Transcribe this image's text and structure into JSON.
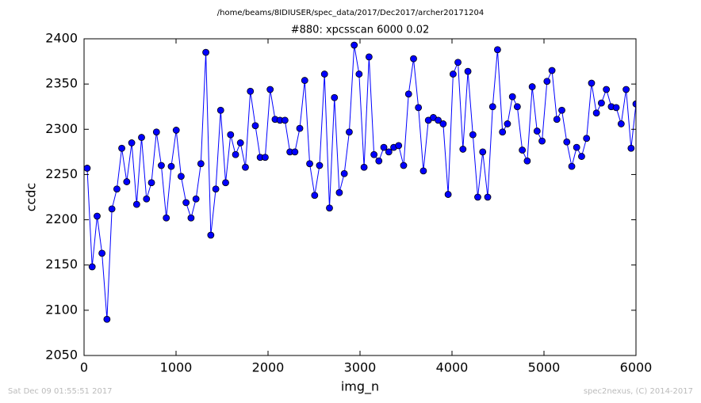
{
  "chart_data": {
    "type": "line",
    "suptitle": "/home/beams/8IDIUSER/spec_data/2017/Dec2017/archer20171204",
    "title": "#880: xpcsscan 6000 0.02",
    "xlabel": "img_n",
    "ylabel": "ccdc",
    "x": [
      34,
      88,
      142,
      195,
      249,
      303,
      357,
      410,
      464,
      518,
      572,
      625,
      679,
      733,
      787,
      840,
      894,
      948,
      1002,
      1055,
      1109,
      1163,
      1217,
      1270,
      1324,
      1378,
      1432,
      1485,
      1539,
      1593,
      1647,
      1700,
      1754,
      1808,
      1862,
      1915,
      1969,
      2023,
      2077,
      2130,
      2184,
      2238,
      2292,
      2345,
      2399,
      2453,
      2507,
      2560,
      2614,
      2668,
      2722,
      2775,
      2829,
      2883,
      2937,
      2990,
      3044,
      3098,
      3152,
      3205,
      3259,
      3313,
      3367,
      3420,
      3474,
      3528,
      3582,
      3635,
      3689,
      3743,
      3797,
      3850,
      3904,
      3958,
      4012,
      4065,
      4119,
      4173,
      4227,
      4280,
      4334,
      4388,
      4442,
      4495,
      4549,
      4603,
      4657,
      4710,
      4764,
      4818,
      4872,
      4925,
      4979,
      5033,
      5087,
      5140,
      5194,
      5248,
      5302,
      5355,
      5409,
      5463,
      5517,
      5570,
      5624,
      5678,
      5732,
      5785,
      5839,
      5893,
      5947,
      6000
    ],
    "series": [
      {
        "color": "#0000ff",
        "values": [
          2257,
          2148,
          2204,
          2163,
          2090,
          2212,
          2234,
          2279,
          2242,
          2285,
          2217,
          2291,
          2223,
          2241,
          2297,
          2260,
          2202,
          2259,
          2299,
          2248,
          2219,
          2202,
          2223,
          2262,
          2385,
          2183,
          2234,
          2321,
          2241,
          2294,
          2272,
          2285,
          2258,
          2342,
          2304,
          2269,
          2269,
          2344,
          2311,
          2310,
          2310,
          2275,
          2275,
          2301,
          2354,
          2262,
          2227,
          2260,
          2361,
          2213,
          2335,
          2230,
          2251,
          2297,
          2393,
          2361,
          2258,
          2380,
          2272,
          2265,
          2280,
          2275,
          2280,
          2282,
          2260,
          2339,
          2378,
          2324,
          2254,
          2310,
          2313,
          2310,
          2306,
          2228,
          2361,
          2374,
          2278,
          2364,
          2294,
          2225,
          2275,
          2225,
          2325,
          2388,
          2297,
          2306,
          2336,
          2325,
          2277,
          2265,
          2347,
          2298,
          2287,
          2353,
          2365,
          2311,
          2321,
          2286,
          2259,
          2280,
          2270,
          2290,
          2351,
          2318,
          2329,
          2344,
          2325,
          2324,
          2306,
          2344,
          2279,
          2328
        ]
      }
    ],
    "xlim": [
      0,
      6000
    ],
    "xticks": [
      0,
      1000,
      2000,
      3000,
      4000,
      5000,
      6000
    ],
    "ylim": [
      2050,
      2400
    ],
    "yticks": [
      2050,
      2100,
      2150,
      2200,
      2250,
      2300,
      2350,
      2400
    ],
    "grid": false
  },
  "footer": {
    "left": "Sat Dec 09 01:55:51 2017",
    "right": "spec2nexus, (C) 2014-2017"
  }
}
